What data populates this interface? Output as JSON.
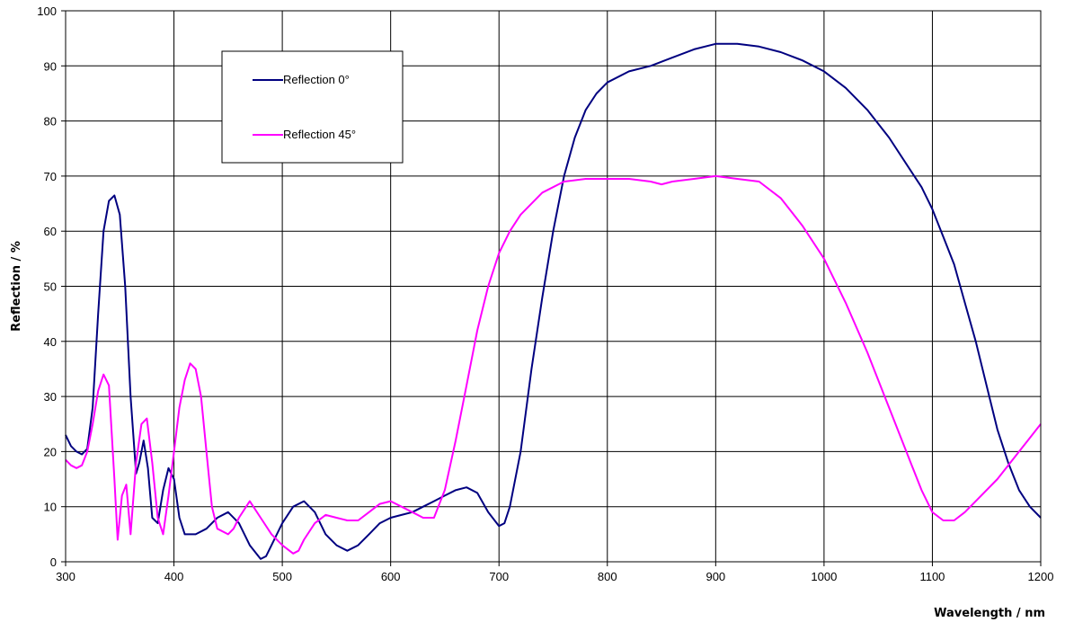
{
  "chart_data": {
    "type": "line",
    "xlabel": "Wavelength / nm",
    "ylabel": "Reflection / %",
    "xlim": [
      300,
      1200
    ],
    "ylim": [
      0,
      100
    ],
    "xticks": [
      300,
      400,
      500,
      600,
      700,
      800,
      900,
      1000,
      1100,
      1200
    ],
    "yticks": [
      0,
      10,
      20,
      30,
      40,
      50,
      60,
      70,
      80,
      90,
      100
    ],
    "grid": true,
    "legend_position": "top-left",
    "series": [
      {
        "name": "Reflection 0°",
        "color": "#000080",
        "x": [
          300,
          305,
          310,
          315,
          320,
          325,
          330,
          335,
          340,
          345,
          350,
          355,
          360,
          365,
          368,
          372,
          376,
          380,
          385,
          390,
          395,
          400,
          405,
          410,
          420,
          430,
          440,
          450,
          460,
          470,
          480,
          485,
          490,
          500,
          510,
          520,
          530,
          540,
          550,
          560,
          570,
          580,
          590,
          600,
          610,
          620,
          630,
          640,
          650,
          660,
          670,
          680,
          690,
          700,
          705,
          710,
          720,
          730,
          740,
          750,
          760,
          770,
          780,
          790,
          800,
          820,
          840,
          860,
          880,
          900,
          920,
          940,
          960,
          980,
          1000,
          1020,
          1040,
          1060,
          1080,
          1090,
          1100,
          1110,
          1120,
          1130,
          1140,
          1150,
          1160,
          1170,
          1180,
          1190,
          1200
        ],
        "y": [
          23,
          21,
          20,
          19.5,
          20.5,
          28,
          45,
          60,
          65.5,
          66.5,
          63,
          50,
          30,
          16,
          18,
          22,
          17,
          8,
          7,
          13,
          17,
          15,
          8,
          5,
          5,
          6,
          8,
          9,
          7,
          3,
          0.5,
          1,
          3,
          7,
          10,
          11,
          9,
          5,
          3,
          2,
          3,
          5,
          7,
          8,
          8.5,
          9,
          10,
          11,
          12,
          13,
          13.5,
          12.5,
          9,
          6.5,
          7,
          10,
          20,
          35,
          48,
          60,
          70,
          77,
          82,
          85,
          87,
          89,
          90,
          91.5,
          93,
          94,
          94,
          93.5,
          92.5,
          91,
          89,
          86,
          82,
          77,
          71,
          68,
          64,
          59,
          54,
          47,
          40,
          32,
          24,
          18,
          13,
          10,
          8
        ]
      },
      {
        "name": "Reflection 45°",
        "color": "#ff00ff",
        "x": [
          300,
          305,
          310,
          315,
          320,
          325,
          330,
          335,
          340,
          345,
          348,
          352,
          356,
          360,
          365,
          370,
          375,
          380,
          385,
          390,
          395,
          400,
          405,
          410,
          415,
          420,
          425,
          430,
          435,
          440,
          450,
          455,
          460,
          470,
          480,
          490,
          500,
          510,
          515,
          520,
          530,
          540,
          550,
          560,
          570,
          580,
          590,
          600,
          610,
          620,
          630,
          640,
          650,
          660,
          670,
          680,
          690,
          700,
          710,
          720,
          740,
          760,
          780,
          800,
          820,
          840,
          850,
          860,
          880,
          900,
          920,
          940,
          960,
          980,
          1000,
          1020,
          1040,
          1060,
          1080,
          1090,
          1100,
          1110,
          1120,
          1130,
          1140,
          1160,
          1180,
          1200
        ],
        "y": [
          18.5,
          17.5,
          17,
          17.5,
          20,
          25,
          31,
          34,
          32,
          15,
          4,
          12,
          14,
          5,
          18,
          25,
          26,
          18,
          8,
          5,
          12,
          20,
          28,
          33,
          36,
          35,
          30,
          20,
          10,
          6,
          5,
          6,
          8,
          11,
          8,
          5,
          3,
          1.5,
          2,
          4,
          7,
          8.5,
          8,
          7.5,
          7.5,
          9,
          10.5,
          11,
          10,
          9,
          8,
          8,
          13,
          22,
          32,
          42,
          50,
          56,
          60,
          63,
          67,
          69,
          69.5,
          69.5,
          69.5,
          69,
          68.5,
          69,
          69.5,
          70,
          69.5,
          69,
          66,
          61,
          55,
          47,
          38,
          28,
          18,
          13,
          9,
          7.5,
          7.5,
          9,
          11,
          15,
          20,
          25
        ]
      }
    ]
  }
}
